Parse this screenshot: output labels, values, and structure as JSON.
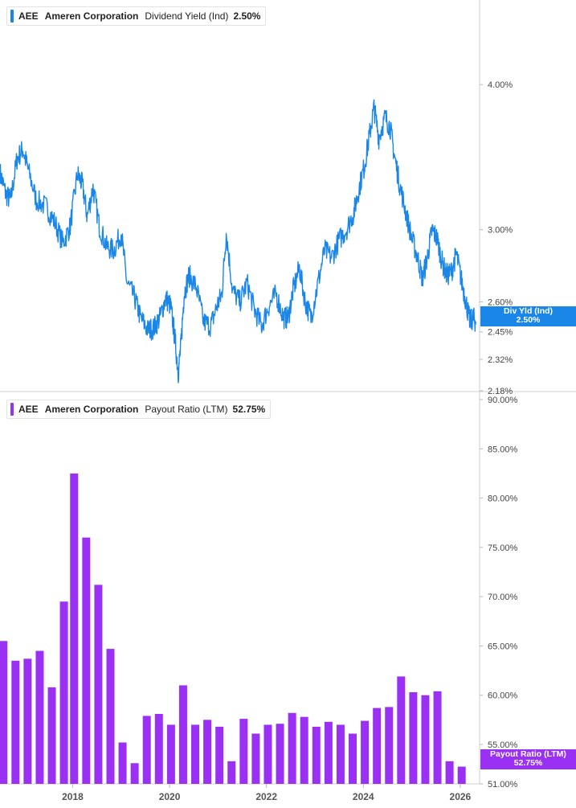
{
  "panels": {
    "top": {
      "ticker": "AEE",
      "company": "Ameren Corporation",
      "metric": "Dividend Yield (Ind)",
      "value": "2.50%",
      "color": "#1a86e8",
      "flag_label": "Div Yld (Ind)",
      "flag_value": "2.50%"
    },
    "bottom": {
      "ticker": "AEE",
      "company": "Ameren Corporation",
      "metric": "Payout Ratio (LTM)",
      "value": "52.75%",
      "color": "#9b30f5",
      "flag_label": "Payout Ratio (LTM)",
      "flag_value": "52.75%"
    }
  },
  "chart_data": [
    {
      "type": "line",
      "series": [
        {
          "name": "Dividend Yield (Ind)"
        }
      ],
      "scale": "log",
      "y_ticks": [
        "4.00%",
        "3.00%",
        "2.60%",
        "2.45%",
        "2.32%",
        "2.18%"
      ],
      "y_tick_values": [
        4.0,
        3.0,
        2.6,
        2.45,
        2.32,
        2.18
      ],
      "ylim": [
        2.18,
        4.7
      ],
      "xlim": [
        2016.5,
        2026.4
      ],
      "x_ticks": [
        "2018",
        "2020",
        "2022",
        "2024",
        "2026"
      ],
      "last_value": 2.5,
      "anchors": [
        [
          2016.5,
          3.36
        ],
        [
          2016.62,
          3.22
        ],
        [
          2016.72,
          3.18
        ],
        [
          2016.85,
          3.45
        ],
        [
          2016.97,
          3.52
        ],
        [
          2017.08,
          3.38
        ],
        [
          2017.25,
          3.18
        ],
        [
          2017.45,
          3.14
        ],
        [
          2017.62,
          3.05
        ],
        [
          2017.8,
          2.92
        ],
        [
          2017.95,
          3.02
        ],
        [
          2018.1,
          3.35
        ],
        [
          2018.2,
          3.28
        ],
        [
          2018.3,
          3.08
        ],
        [
          2018.42,
          3.26
        ],
        [
          2018.55,
          3.02
        ],
        [
          2018.7,
          2.9
        ],
        [
          2018.85,
          2.88
        ],
        [
          2019.0,
          2.98
        ],
        [
          2019.12,
          2.7
        ],
        [
          2019.28,
          2.62
        ],
        [
          2019.4,
          2.52
        ],
        [
          2019.55,
          2.46
        ],
        [
          2019.68,
          2.47
        ],
        [
          2019.8,
          2.52
        ],
        [
          2019.92,
          2.62
        ],
        [
          2020.02,
          2.58
        ],
        [
          2020.1,
          2.44
        ],
        [
          2020.18,
          2.26
        ],
        [
          2020.24,
          2.4
        ],
        [
          2020.3,
          2.64
        ],
        [
          2020.4,
          2.74
        ],
        [
          2020.55,
          2.68
        ],
        [
          2020.7,
          2.5
        ],
        [
          2020.85,
          2.48
        ],
        [
          2020.98,
          2.58
        ],
        [
          2021.08,
          2.64
        ],
        [
          2021.17,
          2.98
        ],
        [
          2021.3,
          2.66
        ],
        [
          2021.45,
          2.6
        ],
        [
          2021.6,
          2.7
        ],
        [
          2021.75,
          2.56
        ],
        [
          2021.9,
          2.48
        ],
        [
          2022.05,
          2.58
        ],
        [
          2022.2,
          2.64
        ],
        [
          2022.35,
          2.52
        ],
        [
          2022.45,
          2.52
        ],
        [
          2022.55,
          2.66
        ],
        [
          2022.68,
          2.78
        ],
        [
          2022.8,
          2.6
        ],
        [
          2022.92,
          2.52
        ],
        [
          2023.05,
          2.68
        ],
        [
          2023.2,
          2.88
        ],
        [
          2023.35,
          2.84
        ],
        [
          2023.5,
          2.94
        ],
        [
          2023.65,
          3.0
        ],
        [
          2023.8,
          3.1
        ],
        [
          2023.9,
          3.24
        ],
        [
          2024.02,
          3.4
        ],
        [
          2024.12,
          3.6
        ],
        [
          2024.22,
          3.82
        ],
        [
          2024.32,
          3.6
        ],
        [
          2024.45,
          3.75
        ],
        [
          2024.55,
          3.68
        ],
        [
          2024.65,
          3.46
        ],
        [
          2024.75,
          3.28
        ],
        [
          2024.88,
          3.1
        ],
        [
          2025.0,
          2.95
        ],
        [
          2025.12,
          2.84
        ],
        [
          2025.22,
          2.72
        ],
        [
          2025.32,
          2.84
        ],
        [
          2025.42,
          3.0
        ],
        [
          2025.52,
          2.95
        ],
        [
          2025.62,
          2.82
        ],
        [
          2025.72,
          2.74
        ],
        [
          2025.82,
          2.76
        ],
        [
          2025.92,
          2.86
        ],
        [
          2026.02,
          2.72
        ],
        [
          2026.12,
          2.6
        ],
        [
          2026.2,
          2.5
        ],
        [
          2026.27,
          2.52
        ],
        [
          2026.32,
          2.5
        ]
      ]
    },
    {
      "type": "bar",
      "series": [
        {
          "name": "Payout Ratio (LTM)"
        }
      ],
      "y_ticks": [
        "90.00%",
        "85.00%",
        "80.00%",
        "75.00%",
        "70.00%",
        "65.00%",
        "60.00%",
        "55.00%",
        "51.00%"
      ],
      "y_tick_values": [
        90,
        85,
        80,
        75,
        70,
        65,
        60,
        55,
        51
      ],
      "ylim": [
        51,
        90
      ],
      "xlim": [
        2016.5,
        2026.4
      ],
      "x_ticks": [
        "2018",
        "2020",
        "2022",
        "2024",
        "2026"
      ],
      "bars": [
        [
          2016.57,
          65.5
        ],
        [
          2016.82,
          63.5
        ],
        [
          2017.07,
          63.7
        ],
        [
          2017.32,
          64.5
        ],
        [
          2017.57,
          60.8
        ],
        [
          2017.82,
          69.5
        ],
        [
          2018.03,
          82.5
        ],
        [
          2018.28,
          76.0
        ],
        [
          2018.53,
          71.2
        ],
        [
          2018.78,
          64.7
        ],
        [
          2019.03,
          55.2
        ],
        [
          2019.28,
          53.1
        ],
        [
          2019.53,
          57.9
        ],
        [
          2019.78,
          58.1
        ],
        [
          2020.03,
          57.0
        ],
        [
          2020.28,
          61.0
        ],
        [
          2020.53,
          57.0
        ],
        [
          2020.78,
          57.5
        ],
        [
          2021.03,
          56.8
        ],
        [
          2021.28,
          53.3
        ],
        [
          2021.53,
          57.6
        ],
        [
          2021.78,
          56.1
        ],
        [
          2022.03,
          57.0
        ],
        [
          2022.28,
          57.1
        ],
        [
          2022.53,
          58.2
        ],
        [
          2022.78,
          57.8
        ],
        [
          2023.03,
          56.8
        ],
        [
          2023.28,
          57.3
        ],
        [
          2023.53,
          57.0
        ],
        [
          2023.78,
          56.1
        ],
        [
          2024.03,
          57.4
        ],
        [
          2024.28,
          58.7
        ],
        [
          2024.53,
          58.8
        ],
        [
          2024.78,
          61.9
        ],
        [
          2025.03,
          60.3
        ],
        [
          2025.28,
          60.0
        ],
        [
          2025.53,
          60.4
        ],
        [
          2025.78,
          53.3
        ],
        [
          2026.03,
          52.75
        ]
      ]
    }
  ]
}
